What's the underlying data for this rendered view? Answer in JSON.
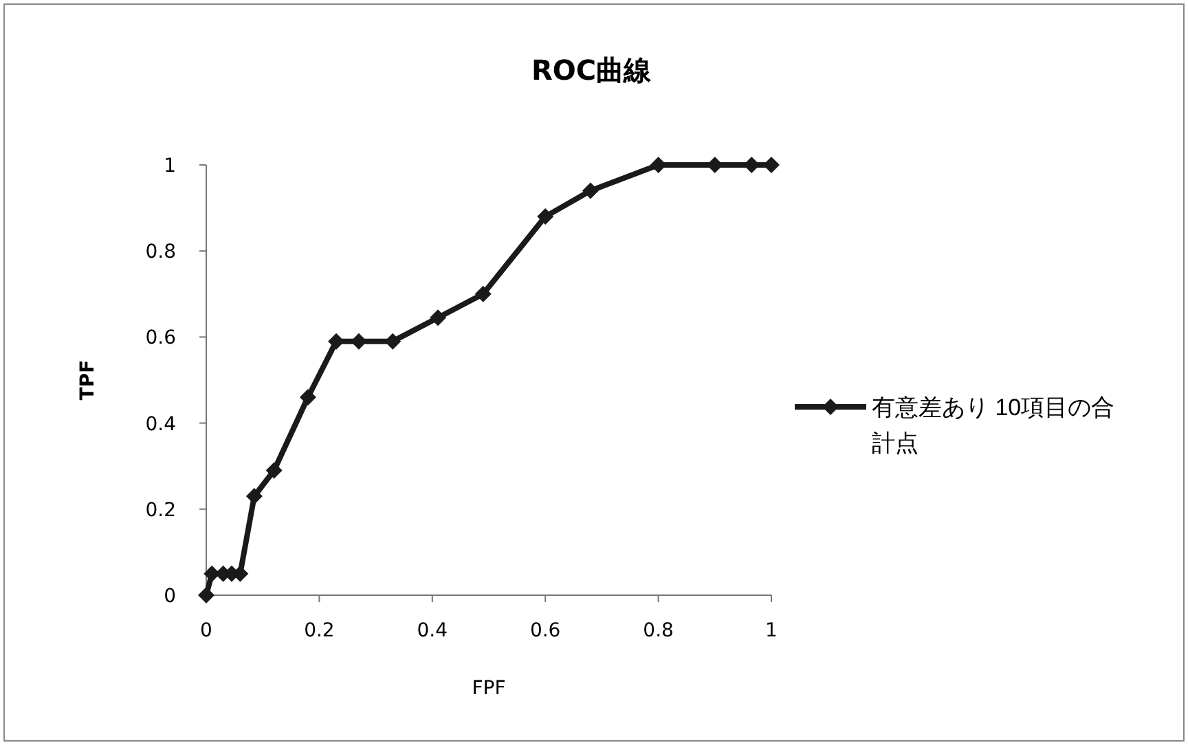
{
  "chart_data": {
    "type": "line",
    "title": "ROC曲線",
    "xlabel": "FPF",
    "ylabel": "TPF",
    "xlim": [
      0,
      1
    ],
    "ylim": [
      0,
      1
    ],
    "xticks": [
      0,
      0.2,
      0.4,
      0.6,
      0.8,
      1
    ],
    "yticks": [
      0,
      0.2,
      0.4,
      0.6,
      0.8,
      1
    ],
    "grid": false,
    "legend": "right",
    "marker": "diamond",
    "line_style": "solid",
    "series": [
      {
        "name": "有意差あり 10項目の合計点",
        "color": "#1a1a1a",
        "x": [
          0,
          0.01,
          0.03,
          0.045,
          0.06,
          0.085,
          0.12,
          0.18,
          0.23,
          0.27,
          0.33,
          0.41,
          0.49,
          0.6,
          0.68,
          0.8,
          0.9,
          0.965,
          1
        ],
        "values": [
          0,
          0.05,
          0.05,
          0.05,
          0.05,
          0.23,
          0.29,
          0.46,
          0.59,
          0.59,
          0.59,
          0.645,
          0.7,
          0.88,
          0.94,
          1,
          1,
          1,
          1
        ]
      }
    ]
  }
}
